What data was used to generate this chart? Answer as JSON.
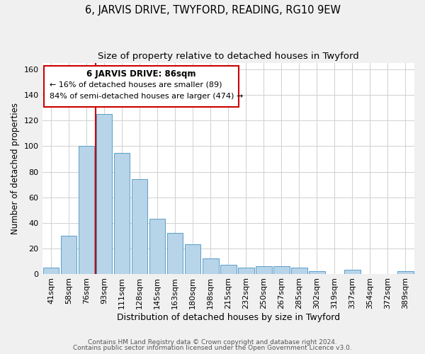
{
  "title": "6, JARVIS DRIVE, TWYFORD, READING, RG10 9EW",
  "subtitle": "Size of property relative to detached houses in Twyford",
  "xlabel": "Distribution of detached houses by size in Twyford",
  "ylabel": "Number of detached properties",
  "bar_color": "#b8d4e8",
  "bar_edge_color": "#5a9ec9",
  "categories": [
    "41sqm",
    "58sqm",
    "76sqm",
    "93sqm",
    "111sqm",
    "128sqm",
    "145sqm",
    "163sqm",
    "180sqm",
    "198sqm",
    "215sqm",
    "232sqm",
    "250sqm",
    "267sqm",
    "285sqm",
    "302sqm",
    "319sqm",
    "337sqm",
    "354sqm",
    "372sqm",
    "389sqm"
  ],
  "values": [
    5,
    30,
    100,
    125,
    95,
    74,
    43,
    32,
    23,
    12,
    7,
    5,
    6,
    6,
    5,
    2,
    0,
    3,
    0,
    0,
    2
  ],
  "vline_x": 2.5,
  "vline_color": "#cc0000",
  "annotation_title": "6 JARVIS DRIVE: 86sqm",
  "annotation_line1": "← 16% of detached houses are smaller (89)",
  "annotation_line2": "84% of semi-detached houses are larger (474) →",
  "annotation_box_color": "#ffffff",
  "annotation_box_edge": "#cc0000",
  "ylim": [
    0,
    165
  ],
  "yticks": [
    0,
    20,
    40,
    60,
    80,
    100,
    120,
    140,
    160
  ],
  "footer1": "Contains HM Land Registry data © Crown copyright and database right 2024.",
  "footer2": "Contains public sector information licensed under the Open Government Licence v3.0.",
  "background_color": "#f0f0f0",
  "plot_bg_color": "#ffffff",
  "grid_color": "#d0d0d0",
  "title_fontsize": 10.5,
  "subtitle_fontsize": 9.5,
  "xlabel_fontsize": 9,
  "ylabel_fontsize": 8.5,
  "tick_fontsize": 8,
  "footer_fontsize": 6.5
}
